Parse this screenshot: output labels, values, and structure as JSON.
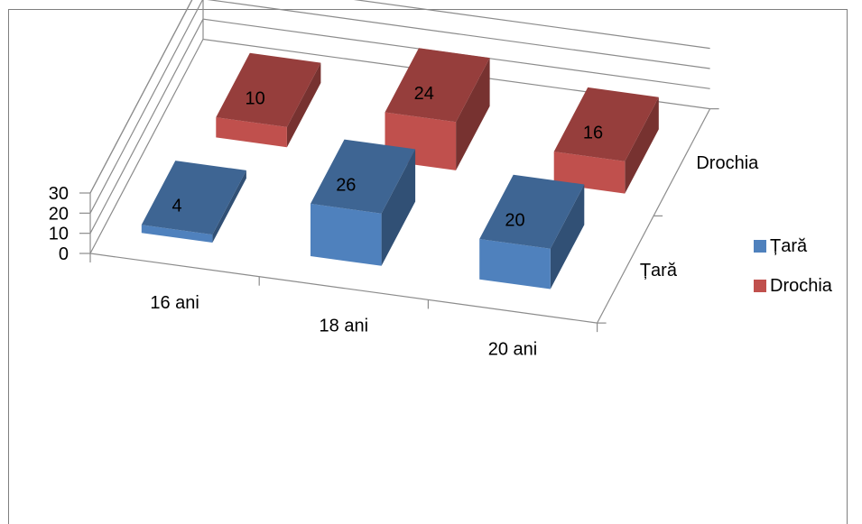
{
  "chart_data": {
    "type": "bar",
    "title": "",
    "xlabel": "",
    "ylabel": "",
    "categories": [
      "16 ani",
      "18 ani",
      "20 ani"
    ],
    "ylim": [
      0,
      30
    ],
    "yticks": [
      "0",
      "10",
      "20",
      "30"
    ],
    "depth_axis_labels": [
      "Drochia",
      "Țară"
    ],
    "series": [
      {
        "name": "Țară",
        "values": [
          4,
          26,
          20
        ],
        "color": "#4f81bd"
      },
      {
        "name": "Drochia",
        "values": [
          10,
          24,
          16
        ],
        "color": "#c0504d"
      }
    ],
    "grid": true,
    "legend_position": "right"
  }
}
